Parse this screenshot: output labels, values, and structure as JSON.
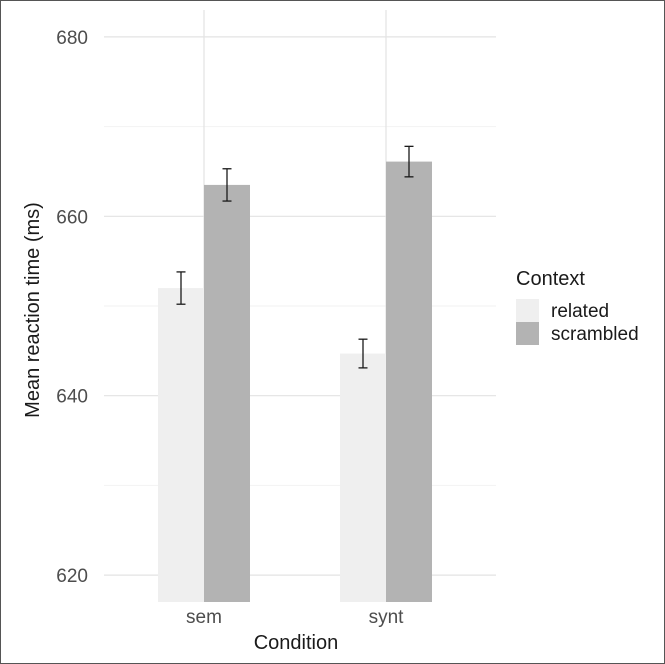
{
  "chart_data": {
    "type": "bar",
    "title": "",
    "xlabel": "Condition",
    "ylabel": "Mean reaction time (ms)",
    "categories": [
      "sem",
      "synt"
    ],
    "series": [
      {
        "name": "related",
        "values": [
          652.0,
          644.7
        ],
        "error": [
          1.8,
          1.6
        ],
        "color": "#efefef"
      },
      {
        "name": "scrambled",
        "values": [
          663.5,
          666.1
        ],
        "error": [
          1.8,
          1.7
        ],
        "color": "#b3b3b3"
      }
    ],
    "ylim": [
      617,
      683
    ],
    "yticks": [
      620,
      640,
      660,
      680
    ],
    "y_minor_gridlines": [
      630,
      650,
      670
    ],
    "grid": true,
    "legend": {
      "title": "Context",
      "position": "right"
    }
  }
}
